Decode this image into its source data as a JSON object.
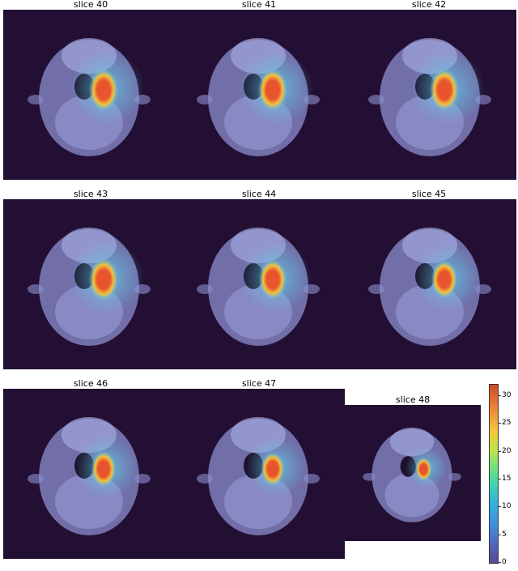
{
  "figure": {
    "panels": [
      {
        "title": "slice 40",
        "intensity": 1.0
      },
      {
        "title": "slice 41",
        "intensity": 1.0
      },
      {
        "title": "slice 42",
        "intensity": 1.0
      },
      {
        "title": "slice 43",
        "intensity": 1.0
      },
      {
        "title": "slice 44",
        "intensity": 0.95
      },
      {
        "title": "slice 45",
        "intensity": 0.9
      },
      {
        "title": "slice 46",
        "intensity": 0.85
      },
      {
        "title": "slice 47",
        "intensity": 0.8
      },
      {
        "title": "slice 48",
        "intensity": 0.7
      }
    ],
    "colorbar": {
      "min": 0,
      "max": 32,
      "ticks": [
        "0",
        "5",
        "10",
        "15",
        "20",
        "25",
        "30"
      ]
    },
    "colors": {
      "background": "#230f33",
      "head": "#8c8fd0",
      "dose_high": "#e8542e",
      "dose_mid": "#f4c13a",
      "dose_low": "#5fd0e8"
    }
  }
}
